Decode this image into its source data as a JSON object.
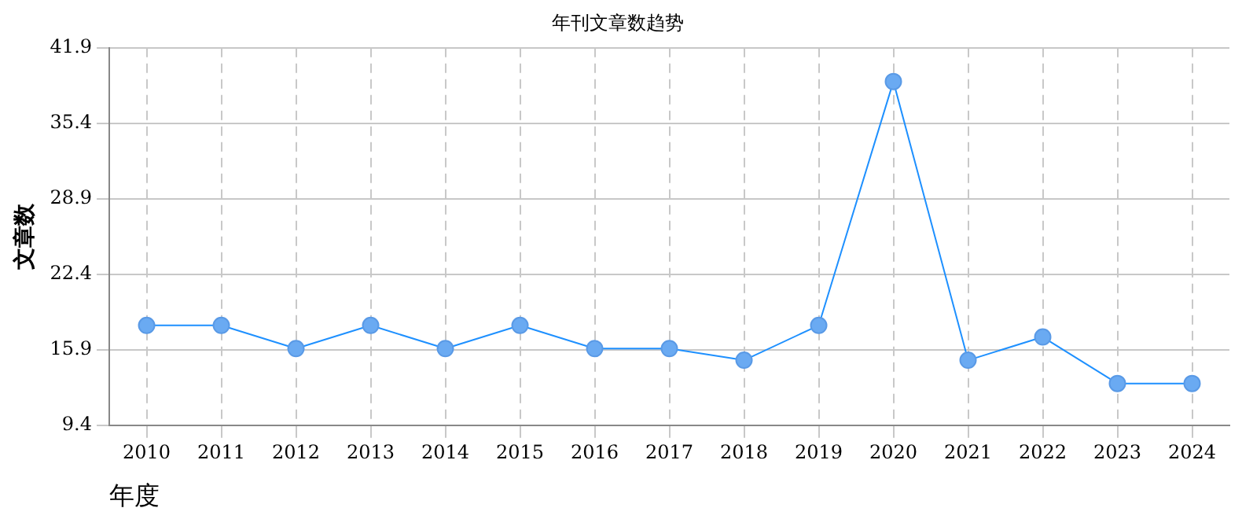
{
  "chart_data": {
    "type": "line",
    "title": "年刊文章数趋势",
    "xlabel": "年度",
    "ylabel": "文章数",
    "categories": [
      "2010",
      "2011",
      "2012",
      "2013",
      "2014",
      "2015",
      "2016",
      "2017",
      "2018",
      "2019",
      "2020",
      "2021",
      "2022",
      "2023",
      "2024"
    ],
    "series": [
      {
        "color": "#1e90ff",
        "values": [
          18,
          18,
          16,
          18,
          16,
          18,
          16,
          16,
          15,
          18,
          39,
          15,
          17,
          13,
          13
        ]
      }
    ],
    "ylim": [
      9.4,
      41.9
    ],
    "yticks": [
      9.4,
      15.9,
      22.4,
      28.9,
      35.4,
      41.9
    ],
    "grid": true,
    "legend": false,
    "marker": "circle",
    "line_style": "solid"
  }
}
